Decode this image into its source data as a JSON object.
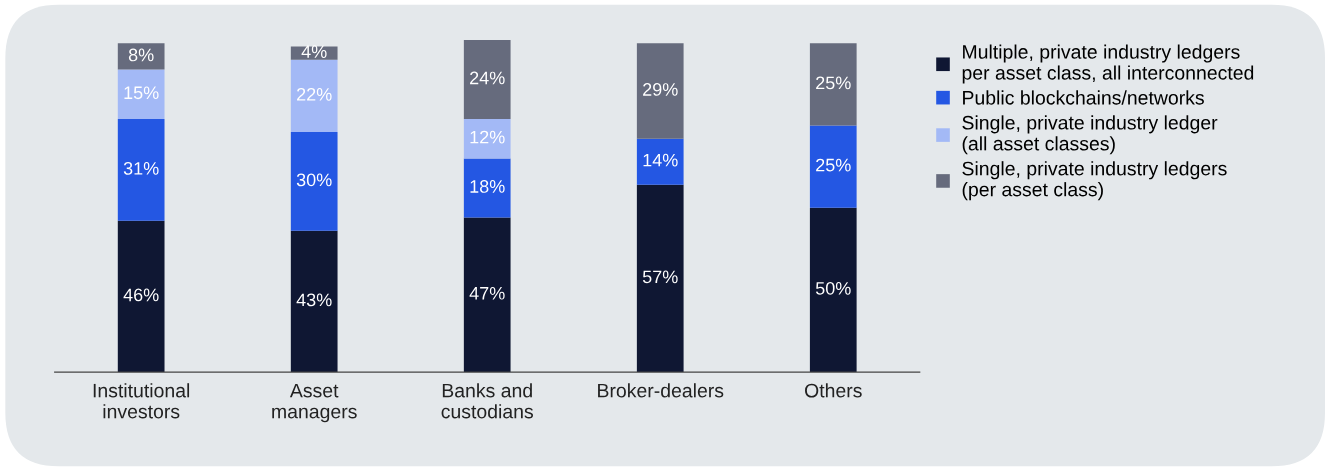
{
  "chart_data": {
    "type": "bar",
    "stacked": true,
    "categories": [
      "Institutional\ninvestors",
      "Asset\nmanagers",
      "Banks and\ncustodians",
      "Broker-dealers",
      "Others"
    ],
    "series": [
      {
        "name": "Multiple, private industry ledgers\nper asset class, all interconnected",
        "color": "#0f1733",
        "values": [
          46,
          43,
          47,
          57,
          50
        ],
        "value_labels": [
          "46%",
          "43%",
          "47%",
          "57%",
          "50%"
        ]
      },
      {
        "name": "Public blockchains/networks",
        "color": "#2457e3",
        "values": [
          31,
          30,
          18,
          14,
          25
        ],
        "value_labels": [
          "31%",
          "30%",
          "18%",
          "14%",
          "25%"
        ]
      },
      {
        "name": "Single, private industry ledger\n(all asset classes)",
        "color": "#a3b9f6",
        "values": [
          15,
          22,
          12,
          null,
          null
        ],
        "value_labels": [
          "15%",
          "22%",
          "12%",
          null,
          null
        ]
      },
      {
        "name": "Single, private industry ledgers\n(per asset class)",
        "color": "#666b7d",
        "values": [
          8,
          4,
          24,
          29,
          25
        ],
        "value_labels": [
          "8%",
          "4%",
          "24%",
          "29%",
          "25%"
        ]
      }
    ],
    "ylim": [
      0,
      101
    ],
    "tick_labels": "x",
    "legend": "right",
    "grid": false
  }
}
